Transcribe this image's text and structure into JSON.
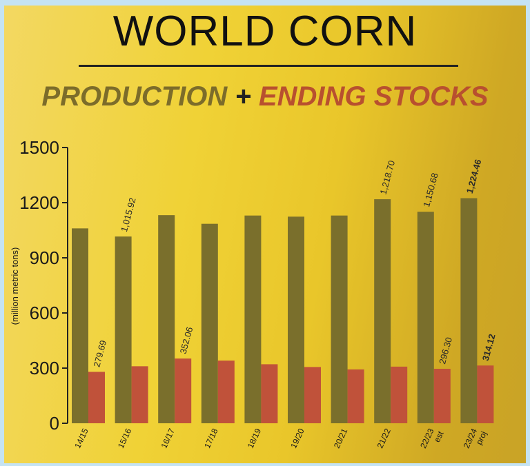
{
  "header": {
    "title": "WORLD CORN",
    "subtitle_part1": "PRODUCTION",
    "subtitle_plus": "+",
    "subtitle_part2": "ENDING STOCKS"
  },
  "colors": {
    "production": "#7a6f2c",
    "ending_stocks": "#c0523a",
    "axis": "#222222"
  },
  "chart_data": {
    "type": "bar",
    "title": "WORLD CORN",
    "ylabel": "(million metric tons)",
    "xlabel": "",
    "ylim": [
      0,
      1500
    ],
    "yticks": [
      0,
      300,
      600,
      900,
      1200,
      1500
    ],
    "categories": [
      "14/15",
      "15/16",
      "16/17",
      "17/18",
      "18/19",
      "19/20",
      "20/21",
      "21/22",
      "22/23 est",
      "23/24 proj"
    ],
    "series": [
      {
        "name": "PRODUCTION",
        "values": [
          1060,
          1015.92,
          1132,
          1085,
          1130,
          1124,
          1130,
          1218.7,
          1150.68,
          1224.46
        ],
        "labels": [
          "",
          "1,015.92",
          "",
          "",
          "",
          "",
          "",
          "1,218.70",
          "1,150.68",
          "1,224.46"
        ]
      },
      {
        "name": "ENDING STOCKS",
        "values": [
          279.69,
          310,
          352.06,
          341,
          321,
          306,
          293,
          308,
          296.3,
          314.12
        ],
        "labels": [
          "279.69",
          "",
          "352.06",
          "",
          "",
          "",
          "",
          "",
          "296.30",
          "314.12"
        ]
      }
    ],
    "grid": false,
    "legend": "subtitle"
  }
}
